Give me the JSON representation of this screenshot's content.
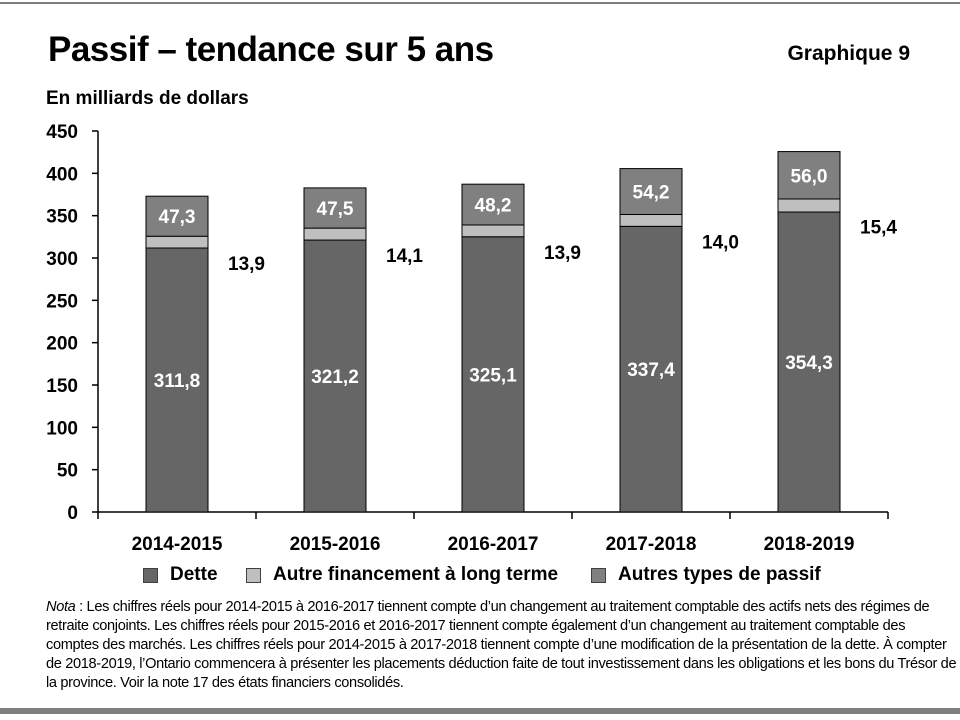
{
  "header": {
    "title": "Passif – tendance sur 5 ans",
    "chart_number": "Graphique 9",
    "unit_label": "En milliards de dollars"
  },
  "colors": {
    "dette": "#666666",
    "autre_financement": "#bfbfbf",
    "autres_passif": "#808080",
    "axis": "#000000"
  },
  "chart_data": {
    "type": "bar",
    "stacked": true,
    "categories": [
      "2014-2015",
      "2015-2016",
      "2016-2017",
      "2017-2018",
      "2018-2019"
    ],
    "series": [
      {
        "name": "Dette",
        "values": [
          311.8,
          321.2,
          325.1,
          337.4,
          354.3
        ],
        "labels": [
          "311,8",
          "321,2",
          "325,1",
          "337,4",
          "354,3"
        ]
      },
      {
        "name": "Autre financement à long terme",
        "values": [
          13.9,
          14.1,
          13.9,
          14.0,
          15.4
        ],
        "labels": [
          "13,9",
          "14,1",
          "13,9",
          "14,0",
          "15,4"
        ]
      },
      {
        "name": "Autres types de passif",
        "values": [
          47.3,
          47.5,
          48.2,
          54.2,
          56.0
        ],
        "labels": [
          "47,3",
          "47,5",
          "48,2",
          "54,2",
          "56,0"
        ]
      }
    ],
    "ylim": [
      0,
      450
    ],
    "yticks": [
      0,
      50,
      100,
      150,
      200,
      250,
      300,
      350,
      400,
      450
    ],
    "grid": false,
    "legend_position": "bottom",
    "xlabel": "",
    "ylabel": "En milliards de dollars"
  },
  "legend": {
    "items": [
      "Dette",
      "Autre financement à long terme",
      "Autres types de passif"
    ]
  },
  "note": {
    "label": "Nota",
    "text": " : Les chiffres réels pour 2014-2015 à 2016-2017 tiennent compte d’un changement au traitement comptable des actifs nets des régimes de retraite conjoints. Les chiffres réels pour 2015-2016 et 2016-2017 tiennent compte également d’un changement au traitement comptable des comptes des marchés. Les chiffres réels pour 2014-2015 à 2017-2018 tiennent compte d’une modification de la présentation de la dette. À compter de 2018-2019, l’Ontario commencera à présenter les placements déduction faite de tout investissement dans les obligations et les bons du Trésor de la province. Voir la note 17 des états financiers consolidés."
  }
}
